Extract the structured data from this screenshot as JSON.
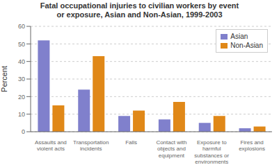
{
  "chart_data": {
    "type": "bar",
    "title": "Fatal occupational injuries to civilian workers by event\nor exposure, Asian and Non-Asian, 1999-2003",
    "categories": [
      "Assaults and\nviolent acts",
      "Transportation\nincidents",
      "Falls",
      "Contact with\nobjects and\nequipment",
      "Exposure to\nharmful\nsubstances or\nenvironments",
      "Fires and\nexplosions"
    ],
    "series": [
      {
        "name": "Asian",
        "color": "#8080cc",
        "values": [
          52,
          24,
          9,
          7,
          5,
          2
        ]
      },
      {
        "name": "Non-Asian",
        "color": "#e08818",
        "values": [
          15,
          43,
          12,
          17,
          9,
          3
        ]
      }
    ],
    "ylabel": "Percent",
    "ylim": [
      0,
      60
    ],
    "yticks": [
      0,
      10,
      20,
      30,
      40,
      50,
      60
    ],
    "grid": true,
    "legend": "upper right"
  }
}
